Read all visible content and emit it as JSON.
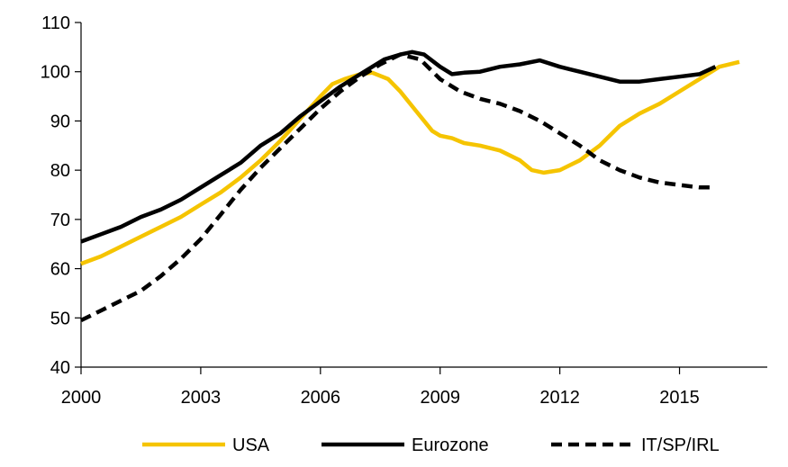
{
  "chart_data": {
    "type": "line",
    "title": "",
    "xlabel": "",
    "ylabel": "",
    "xlim": [
      2000,
      2017.2
    ],
    "ylim": [
      40,
      110
    ],
    "x_ticks": [
      2000,
      2003,
      2006,
      2009,
      2012,
      2015
    ],
    "x_tick_labels": [
      "2000",
      "2003",
      "2006",
      "2009",
      "2012",
      "2015"
    ],
    "y_ticks": [
      40,
      50,
      60,
      70,
      80,
      90,
      100,
      110
    ],
    "y_tick_labels": [
      "40",
      "50",
      "60",
      "70",
      "80",
      "90",
      "100",
      "110"
    ],
    "grid": false,
    "legend_position": "bottom",
    "series": [
      {
        "name": "USA",
        "color": "#F5C400",
        "dash": "solid",
        "points": [
          [
            2000,
            61
          ],
          [
            2000.5,
            62.5
          ],
          [
            2001,
            64.5
          ],
          [
            2001.5,
            66.5
          ],
          [
            2002,
            68.5
          ],
          [
            2002.5,
            70.5
          ],
          [
            2003,
            73
          ],
          [
            2003.5,
            75.5
          ],
          [
            2004,
            78.5
          ],
          [
            2004.5,
            82
          ],
          [
            2005,
            86
          ],
          [
            2005.5,
            90.5
          ],
          [
            2006,
            95
          ],
          [
            2006.3,
            97.5
          ],
          [
            2006.6,
            98.5
          ],
          [
            2007,
            99.5
          ],
          [
            2007.3,
            99.8
          ],
          [
            2007.7,
            98.5
          ],
          [
            2008,
            96
          ],
          [
            2008.4,
            92
          ],
          [
            2008.8,
            88
          ],
          [
            2009,
            87
          ],
          [
            2009.3,
            86.5
          ],
          [
            2009.6,
            85.5
          ],
          [
            2010,
            85
          ],
          [
            2010.5,
            84
          ],
          [
            2011,
            82
          ],
          [
            2011.3,
            80
          ],
          [
            2011.6,
            79.5
          ],
          [
            2012,
            80
          ],
          [
            2012.5,
            82
          ],
          [
            2013,
            85
          ],
          [
            2013.5,
            89
          ],
          [
            2014,
            91.5
          ],
          [
            2014.5,
            93.5
          ],
          [
            2015,
            96
          ],
          [
            2015.5,
            98.5
          ],
          [
            2016,
            101
          ],
          [
            2016.5,
            102
          ]
        ]
      },
      {
        "name": "Eurozone",
        "color": "#000000",
        "dash": "solid",
        "points": [
          [
            2000,
            65.5
          ],
          [
            2000.5,
            67
          ],
          [
            2001,
            68.5
          ],
          [
            2001.5,
            70.5
          ],
          [
            2002,
            72
          ],
          [
            2002.5,
            74
          ],
          [
            2003,
            76.5
          ],
          [
            2003.5,
            79
          ],
          [
            2004,
            81.5
          ],
          [
            2004.5,
            85
          ],
          [
            2005,
            87.5
          ],
          [
            2005.5,
            91
          ],
          [
            2006,
            94
          ],
          [
            2006.5,
            97
          ],
          [
            2007,
            99.5
          ],
          [
            2007.3,
            101
          ],
          [
            2007.6,
            102.5
          ],
          [
            2008,
            103.5
          ],
          [
            2008.3,
            104
          ],
          [
            2008.6,
            103.5
          ],
          [
            2009,
            101
          ],
          [
            2009.3,
            99.5
          ],
          [
            2009.6,
            99.8
          ],
          [
            2010,
            100
          ],
          [
            2010.5,
            101
          ],
          [
            2011,
            101.5
          ],
          [
            2011.5,
            102.3
          ],
          [
            2012,
            101
          ],
          [
            2012.5,
            100
          ],
          [
            2013,
            99
          ],
          [
            2013.5,
            98
          ],
          [
            2014,
            98
          ],
          [
            2014.5,
            98.5
          ],
          [
            2015,
            99
          ],
          [
            2015.5,
            99.5
          ],
          [
            2015.9,
            101
          ]
        ]
      },
      {
        "name": "IT/SP/IRL",
        "color": "#000000",
        "dash": "dashed",
        "points": [
          [
            2000,
            49.5
          ],
          [
            2000.5,
            51.5
          ],
          [
            2001,
            53.5
          ],
          [
            2001.5,
            55.5
          ],
          [
            2002,
            58.5
          ],
          [
            2002.5,
            62
          ],
          [
            2003,
            66
          ],
          [
            2003.5,
            71
          ],
          [
            2004,
            76
          ],
          [
            2004.5,
            80.5
          ],
          [
            2005,
            84.5
          ],
          [
            2005.5,
            88.5
          ],
          [
            2006,
            92.5
          ],
          [
            2006.5,
            96
          ],
          [
            2007,
            99
          ],
          [
            2007.5,
            101.5
          ],
          [
            2008,
            103.5
          ],
          [
            2008.5,
            102.5
          ],
          [
            2009,
            98.5
          ],
          [
            2009.5,
            96
          ],
          [
            2010,
            94.5
          ],
          [
            2010.5,
            93.5
          ],
          [
            2011,
            92
          ],
          [
            2011.5,
            90
          ],
          [
            2012,
            87.5
          ],
          [
            2012.5,
            85
          ],
          [
            2013,
            82
          ],
          [
            2013.5,
            80
          ],
          [
            2014,
            78.5
          ],
          [
            2014.5,
            77.5
          ],
          [
            2015,
            77
          ],
          [
            2015.5,
            76.5
          ],
          [
            2015.8,
            76.5
          ]
        ]
      }
    ]
  }
}
